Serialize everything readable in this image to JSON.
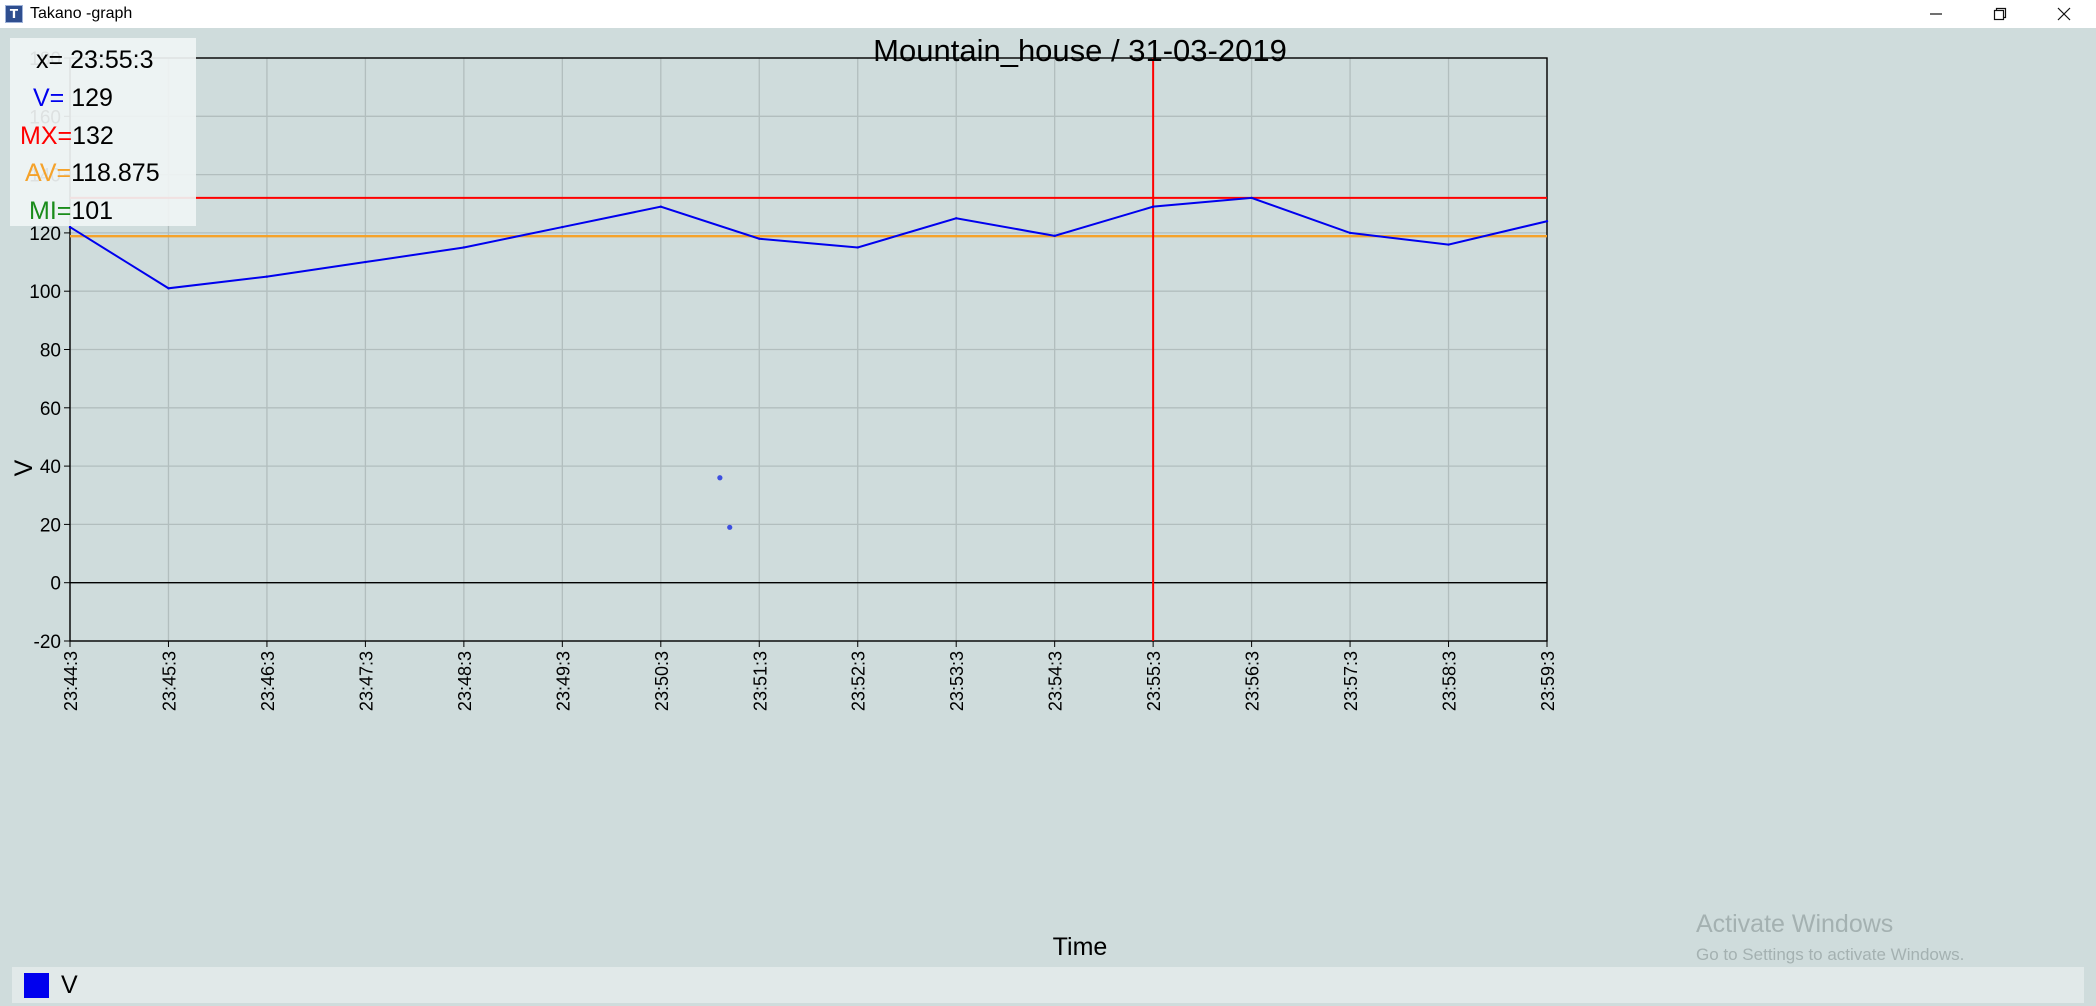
{
  "window": {
    "icon_glyph": "T",
    "title": "Takano -graph",
    "minimize_icon": "minimize-icon",
    "restore_icon": "restore-icon",
    "close_icon": "close-icon"
  },
  "infobox": {
    "x_label": "x=",
    "x_value": "23:55:3",
    "v_label": "V=",
    "v_value": "129",
    "mx_label": "MX=",
    "mx_value": "132",
    "av_label": "AV=",
    "av_value": "118.875",
    "mi_label": "MI=",
    "mi_value": "101"
  },
  "watermark": {
    "line1": "Activate Windows",
    "line2": "Go to Settings to activate Windows."
  },
  "colors": {
    "series": "#0000ee",
    "max_line": "#ff0000",
    "avg_line": "#f5a22a",
    "min_label": "#1a8c1a",
    "cursor": "#ff0000",
    "grid": "#b2bebe"
  },
  "chart_data": {
    "type": "line",
    "title": "Mountain_house / 31-03-2019",
    "xlabel": "Time",
    "ylabel": "V",
    "ylim": [
      -20,
      180
    ],
    "yticks": [
      -20,
      0,
      20,
      40,
      60,
      80,
      100,
      120,
      140,
      160,
      180
    ],
    "categories": [
      "23:44:3",
      "23:45:3",
      "23:46:3",
      "23:47:3",
      "23:48:3",
      "23:49:3",
      "23:50:3",
      "23:51:3",
      "23:52:3",
      "23:53:3",
      "23:54:3",
      "23:55:3",
      "23:56:3",
      "23:57:3",
      "23:58:3",
      "23:59:3"
    ],
    "series": [
      {
        "name": "V",
        "values": [
          122,
          101,
          105,
          110,
          115,
          122,
          129,
          118,
          115,
          125,
          119,
          129,
          132,
          120,
          116,
          124
        ]
      }
    ],
    "reference_lines": {
      "max": 132,
      "average": 118.875
    },
    "cursor_x": "23:55:3",
    "stray_points": [
      {
        "x": 6.6,
        "y": 36
      },
      {
        "x": 6.7,
        "y": 19
      }
    ],
    "grid": true,
    "legend": "bottom-left"
  }
}
